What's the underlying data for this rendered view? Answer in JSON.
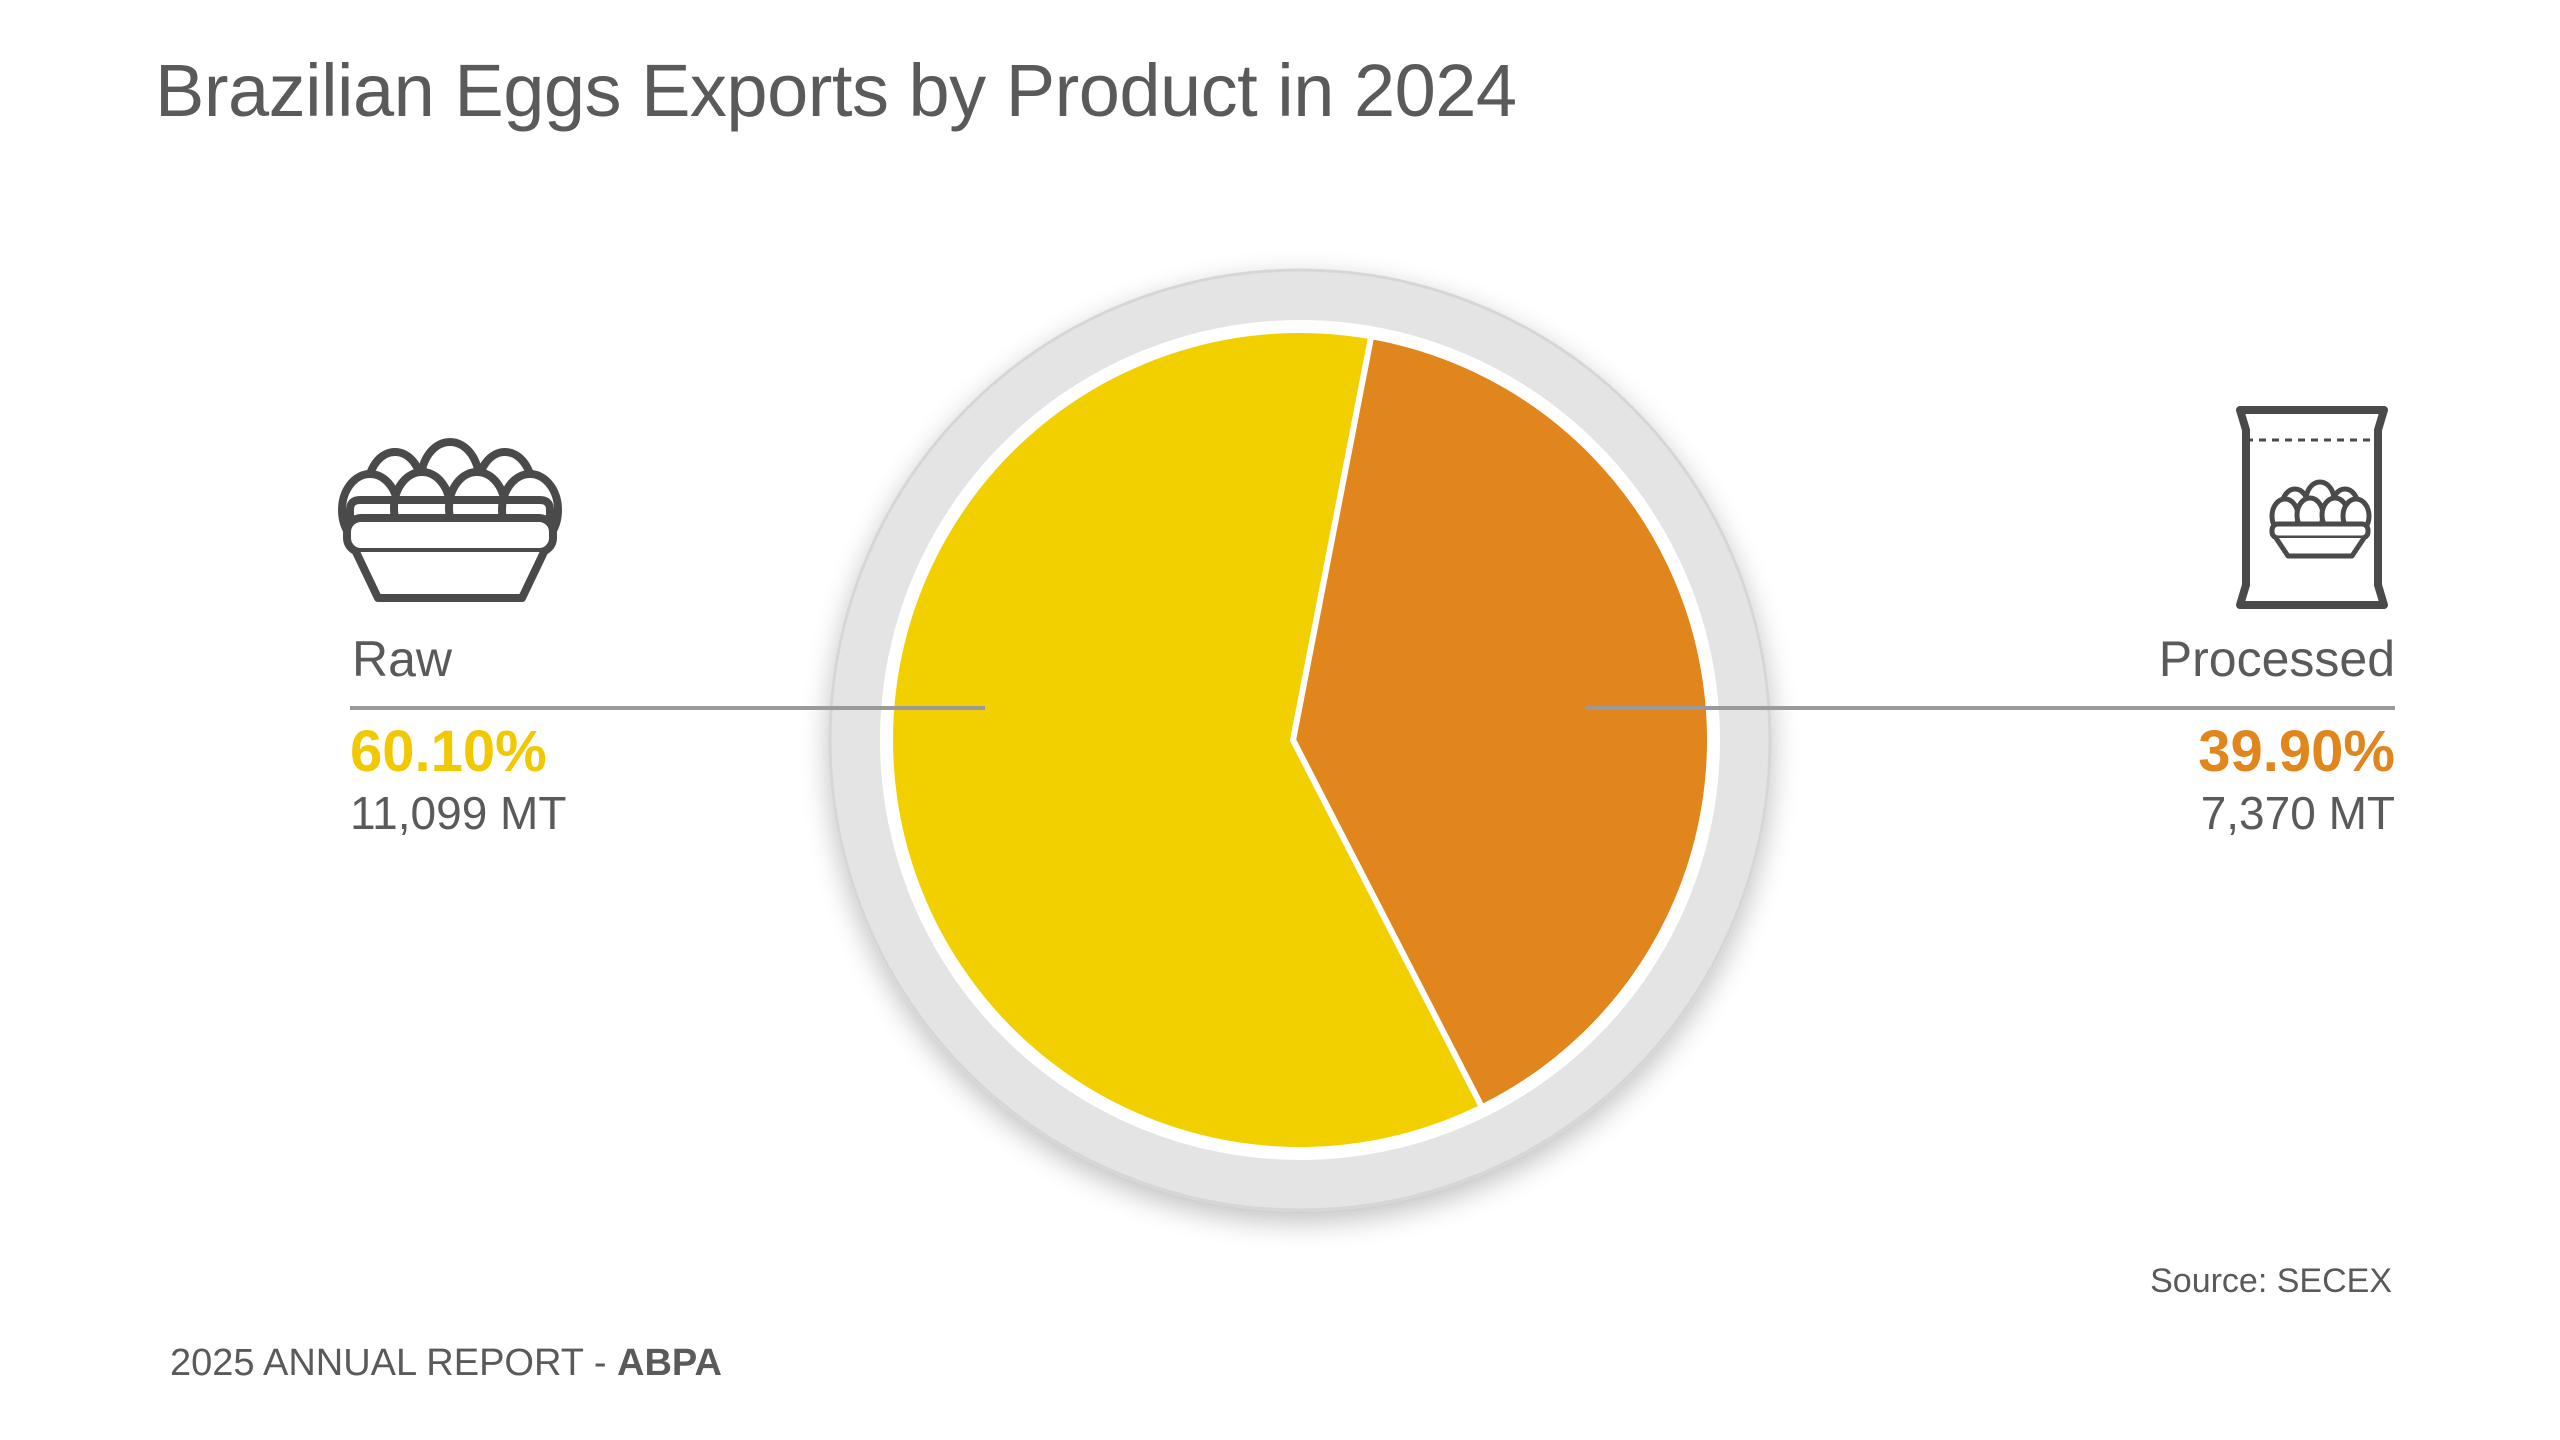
{
  "title": "Brazilian Eggs Exports by Product in 2024",
  "chart_data": {
    "type": "pie",
    "title": "Brazilian Eggs Exports by Product in 2024",
    "slices": [
      {
        "label": "Raw",
        "percent": 60.1,
        "percent_label": "60.10%",
        "value": 11099,
        "value_label": "11,099 MT",
        "color": "#F2D000",
        "icon": "egg-basket-icon"
      },
      {
        "label": "Processed",
        "percent": 39.9,
        "percent_label": "39.90%",
        "value": 7370,
        "value_label": "7,370 MT",
        "color": "#E0861C",
        "icon": "egg-package-icon"
      }
    ]
  },
  "source": "Source: SECEX",
  "footer": {
    "report": "2025 ANNUAL REPORT - ",
    "brand": "ABPA"
  },
  "colors": {
    "ring": "#E4E4E4",
    "leader_line": "#9a9a9a",
    "icon_stroke": "#4a4a4a"
  }
}
